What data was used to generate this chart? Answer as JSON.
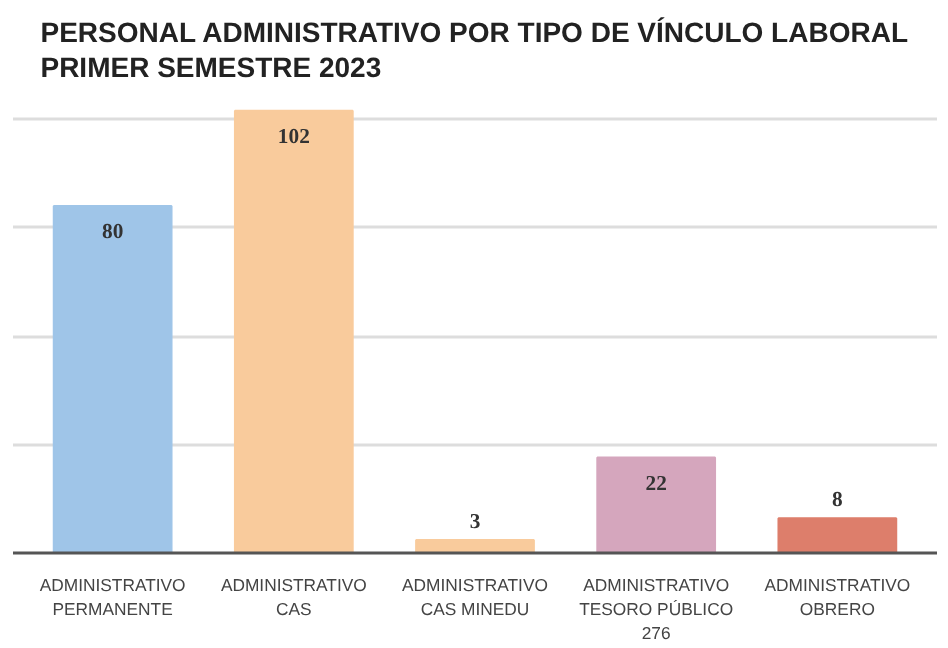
{
  "chart_data": {
    "type": "bar",
    "title": "PERSONAL ADMINISTRATIVO POR TIPO DE VÍNCULO LABORAL\nPRIMER SEMESTRE 2023",
    "categories": [
      "ADMINISTRATIVO PERMANENTE",
      "ADMINISTRATIVO CAS",
      "ADMINISTRATIVO CAS MINEDU",
      "ADMINISTRATIVO TESORO PÚBLICO 276",
      "ADMINISTRATIVO OBRERO"
    ],
    "values": [
      80,
      102,
      3,
      22,
      8
    ],
    "colors": [
      "#9fc5e8",
      "#f9cb9c",
      "#f9cb9c",
      "#d5a6bd",
      "#dd7e6b"
    ],
    "yticks": [
      {
        "value": 0,
        "label": null
      },
      {
        "value": 25,
        "label": null
      },
      {
        "value": 50,
        "label": null
      },
      {
        "value": 75,
        "label": null
      },
      {
        "value": 100,
        "label": null
      }
    ],
    "grid": "y",
    "tick_labels": "x",
    "data_labels": true
  }
}
